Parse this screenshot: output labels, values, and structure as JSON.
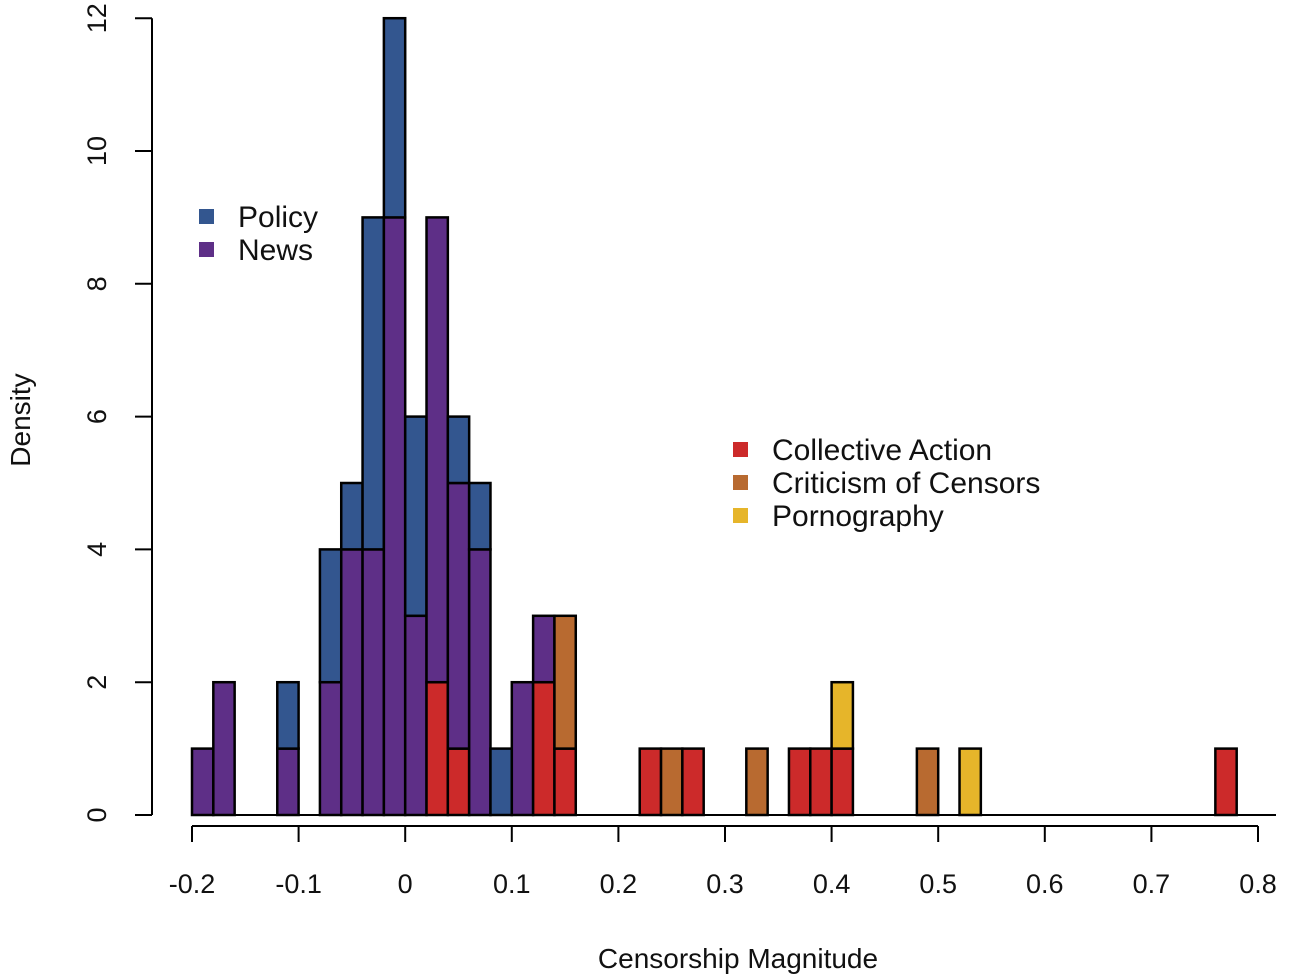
{
  "chart_data": {
    "type": "bar",
    "title": "",
    "xlabel": "Censorship Magnitude",
    "ylabel": "Density",
    "xlim": [
      -0.2,
      0.8
    ],
    "ylim": [
      0,
      12
    ],
    "x_ticks": [
      "-0.2",
      "-0.1",
      "0",
      "0.1",
      "0.2",
      "0.3",
      "0.4",
      "0.5",
      "0.6",
      "0.7",
      "0.8"
    ],
    "y_ticks": [
      "0",
      "2",
      "4",
      "6",
      "8",
      "10",
      "12"
    ],
    "bin_width": 0.02,
    "colors": {
      "Policy": "#33568f",
      "News": "#5e2f87",
      "Collective Action": "#cc2a2a",
      "Criticism of Censors": "#b86a30",
      "Pornography": "#e6b52a"
    },
    "legends": [
      {
        "position": "upper-left",
        "entries": [
          "Policy",
          "News"
        ]
      },
      {
        "position": "center-right",
        "entries": [
          "Collective Action",
          "Criticism of Censors",
          "Pornography"
        ]
      }
    ],
    "bins": [
      {
        "x": -0.19,
        "segments": [
          [
            "News",
            1
          ]
        ]
      },
      {
        "x": -0.17,
        "segments": [
          [
            "News",
            2
          ]
        ]
      },
      {
        "x": -0.11,
        "segments": [
          [
            "News",
            1
          ],
          [
            "Policy",
            1
          ]
        ]
      },
      {
        "x": -0.07,
        "segments": [
          [
            "News",
            2
          ],
          [
            "Policy",
            2
          ]
        ]
      },
      {
        "x": -0.05,
        "segments": [
          [
            "News",
            4
          ],
          [
            "Policy",
            1
          ]
        ]
      },
      {
        "x": -0.03,
        "segments": [
          [
            "News",
            4
          ],
          [
            "Policy",
            5
          ]
        ]
      },
      {
        "x": -0.01,
        "segments": [
          [
            "News",
            9
          ],
          [
            "Policy",
            3
          ]
        ]
      },
      {
        "x": 0.01,
        "segments": [
          [
            "News",
            3
          ],
          [
            "Policy",
            3
          ]
        ]
      },
      {
        "x": 0.03,
        "segments": [
          [
            "Collective Action",
            2
          ],
          [
            "News",
            7
          ]
        ]
      },
      {
        "x": 0.05,
        "segments": [
          [
            "Collective Action",
            1
          ],
          [
            "News",
            4
          ],
          [
            "Policy",
            1
          ]
        ]
      },
      {
        "x": 0.07,
        "segments": [
          [
            "News",
            4
          ],
          [
            "Policy",
            1
          ]
        ]
      },
      {
        "x": 0.09,
        "segments": [
          [
            "Policy",
            1
          ]
        ]
      },
      {
        "x": 0.11,
        "segments": [
          [
            "News",
            2
          ]
        ]
      },
      {
        "x": 0.13,
        "segments": [
          [
            "Collective Action",
            2
          ],
          [
            "News",
            1
          ]
        ]
      },
      {
        "x": 0.15,
        "segments": [
          [
            "Collective Action",
            1
          ],
          [
            "Criticism of Censors",
            2
          ]
        ]
      },
      {
        "x": 0.23,
        "segments": [
          [
            "Collective Action",
            1
          ]
        ]
      },
      {
        "x": 0.25,
        "segments": [
          [
            "Criticism of Censors",
            1
          ]
        ]
      },
      {
        "x": 0.27,
        "segments": [
          [
            "Collective Action",
            1
          ]
        ]
      },
      {
        "x": 0.33,
        "segments": [
          [
            "Criticism of Censors",
            1
          ]
        ]
      },
      {
        "x": 0.37,
        "segments": [
          [
            "Collective Action",
            1
          ]
        ]
      },
      {
        "x": 0.39,
        "segments": [
          [
            "Collective Action",
            1
          ]
        ]
      },
      {
        "x": 0.41,
        "segments": [
          [
            "Collective Action",
            1
          ],
          [
            "Pornography",
            1
          ]
        ]
      },
      {
        "x": 0.49,
        "segments": [
          [
            "Criticism of Censors",
            1
          ]
        ]
      },
      {
        "x": 0.53,
        "segments": [
          [
            "Pornography",
            1
          ]
        ]
      },
      {
        "x": 0.77,
        "segments": [
          [
            "Collective Action",
            1
          ]
        ]
      }
    ]
  }
}
